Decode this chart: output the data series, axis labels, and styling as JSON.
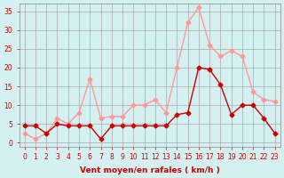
{
  "hours": [
    0,
    1,
    2,
    3,
    4,
    5,
    6,
    7,
    8,
    9,
    10,
    11,
    12,
    13,
    14,
    15,
    16,
    17,
    18,
    19,
    20,
    21,
    22,
    23
  ],
  "wind_avg": [
    2.5,
    1.0,
    2.5,
    6.5,
    5.0,
    8.0,
    17.0,
    6.5,
    7.0,
    7.0,
    10.0,
    10.0,
    11.5,
    8.0,
    20.0,
    32.0,
    36.0,
    26.0,
    23.0,
    24.5,
    23.0,
    13.5,
    11.5,
    11.0
  ],
  "wind_gust": [
    4.5,
    4.5,
    2.5,
    5.0,
    4.5,
    4.5,
    4.5,
    1.0,
    4.5,
    4.5,
    4.5,
    4.5,
    4.5,
    4.5,
    7.5,
    8.0,
    20.0,
    19.5,
    15.5,
    7.5,
    10.0,
    10.0,
    6.5,
    2.5
  ],
  "avg_color": "#ff9999",
  "gust_color": "#cc0000",
  "bg_color": "#d4f0f0",
  "grid_color": "#aaaaaa",
  "axis_color": "#cc0000",
  "xlabel": "Vent moyen/en rafales ( km/h )",
  "ylim": [
    -1,
    37
  ],
  "xlim": [
    -0.5,
    23.5
  ],
  "yticks": [
    0,
    5,
    10,
    15,
    20,
    25,
    30,
    35
  ]
}
